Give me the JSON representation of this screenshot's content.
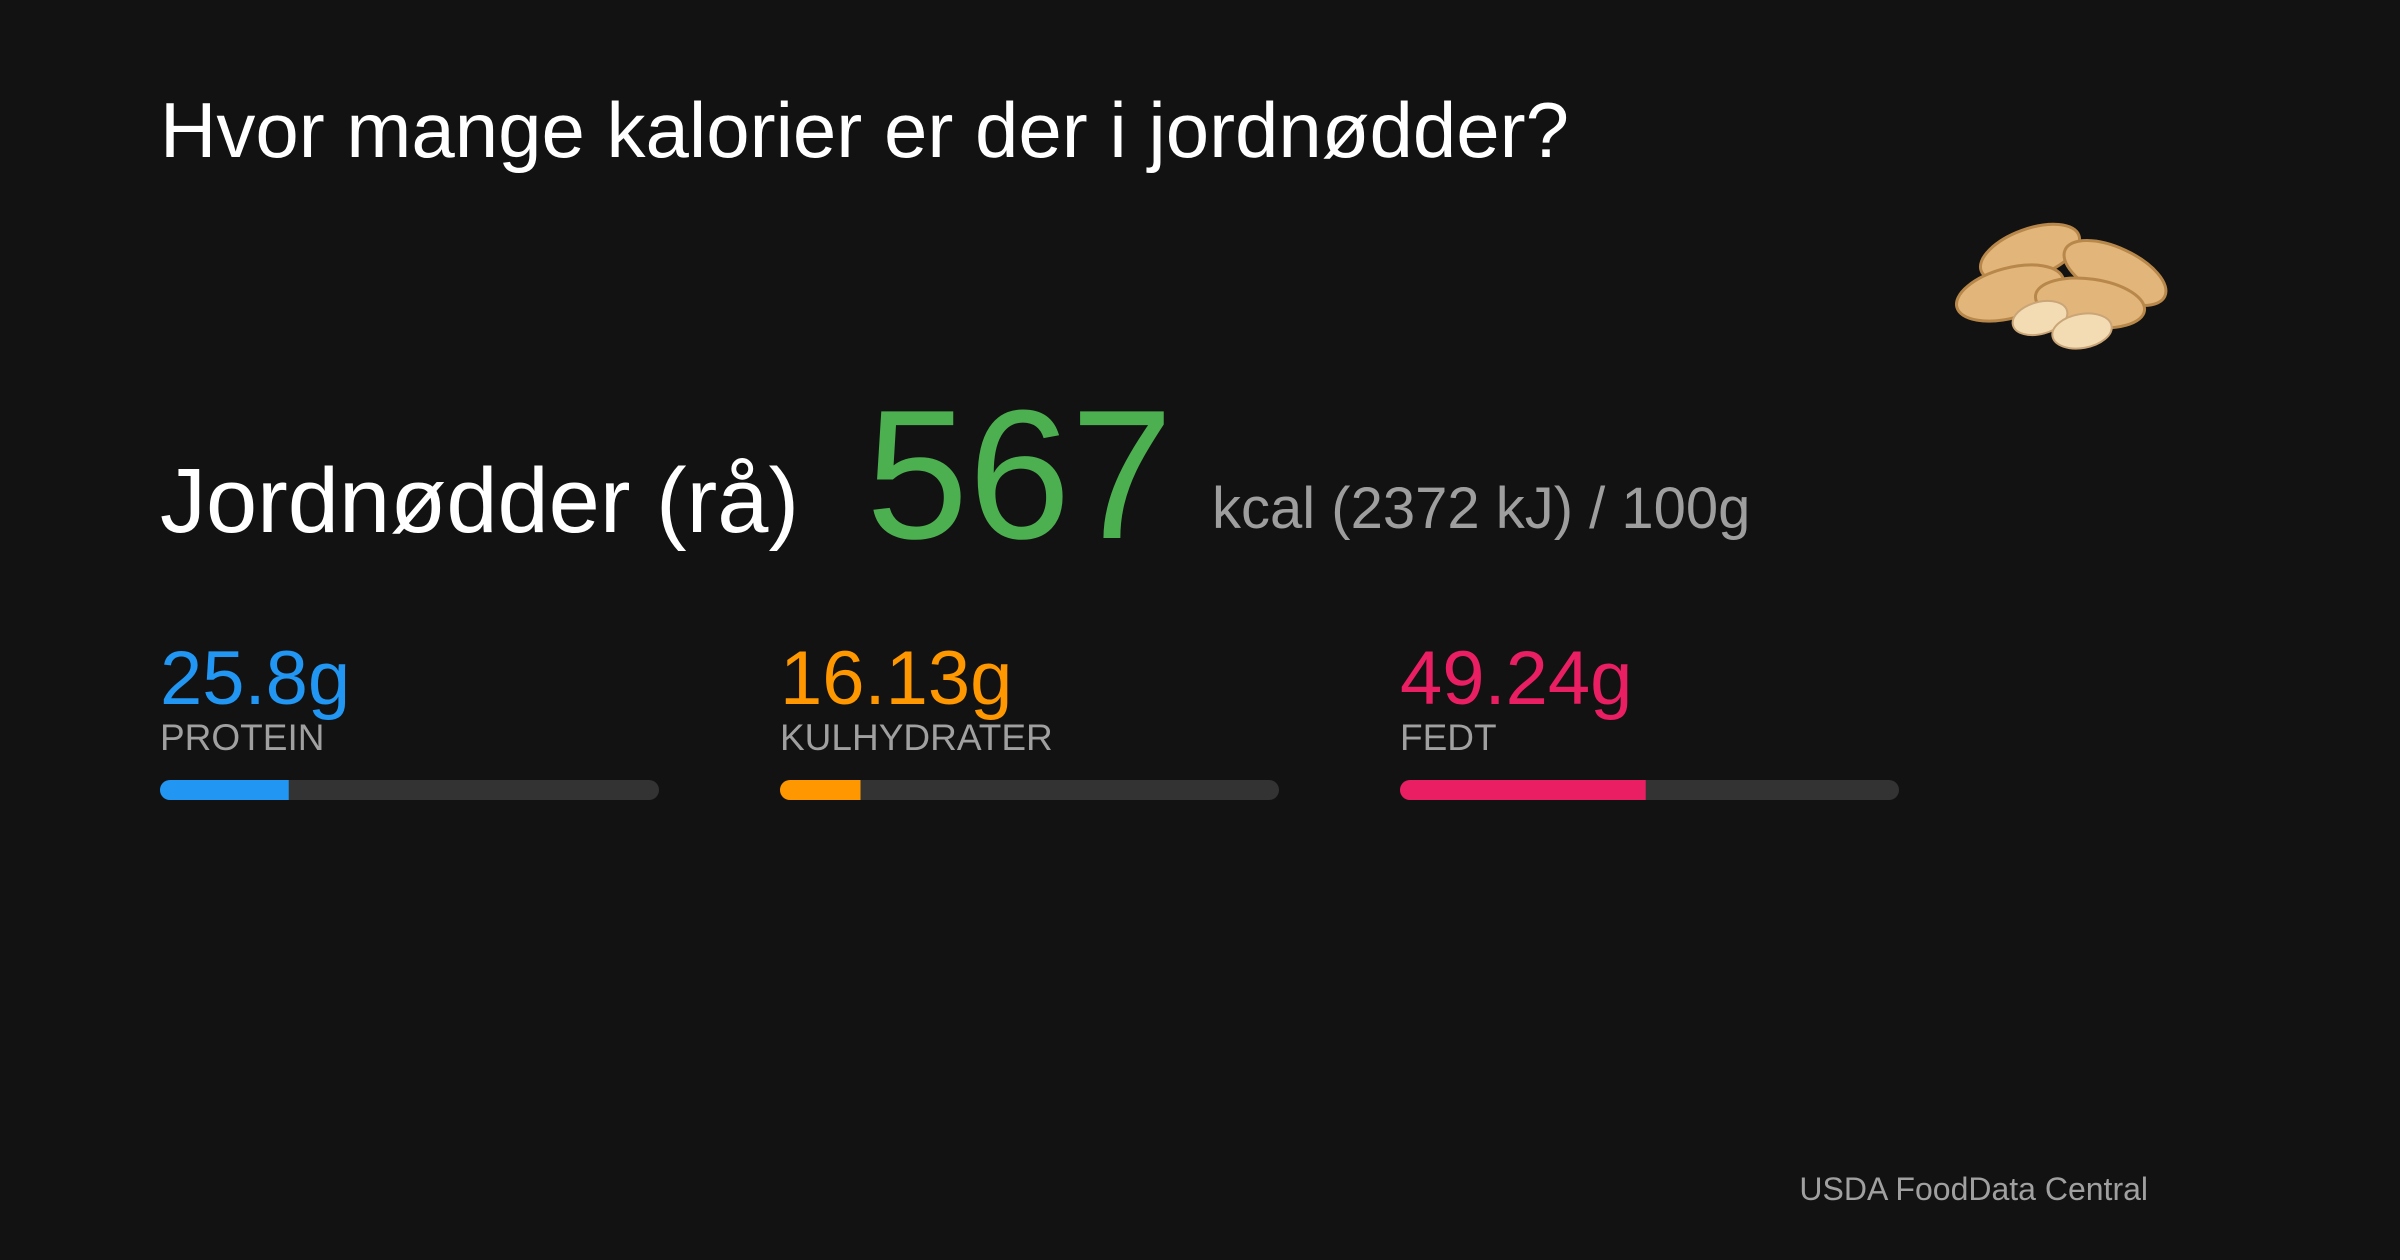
{
  "header": {
    "title": "Hvor mange kalorier er der i jordnødder?"
  },
  "food": {
    "name": "Jordnødder (rå)",
    "calories": 567,
    "calories_color": "#4caf50",
    "unit": "kcal (2372 kJ) / 100g"
  },
  "macros": {
    "xlim": [
      0,
      100
    ],
    "items": [
      {
        "name": "PROTEIN",
        "value": 25.8,
        "value_label": "25.8g",
        "color": "#2196f3"
      },
      {
        "name": "KULHYDRATER",
        "value": 16.13,
        "value_label": "16.13g",
        "color": "#ff9800"
      },
      {
        "name": "FEDT",
        "value": 49.24,
        "value_label": "49.24g",
        "color": "#e91e63"
      }
    ]
  },
  "source": "USDA FoodData Central"
}
